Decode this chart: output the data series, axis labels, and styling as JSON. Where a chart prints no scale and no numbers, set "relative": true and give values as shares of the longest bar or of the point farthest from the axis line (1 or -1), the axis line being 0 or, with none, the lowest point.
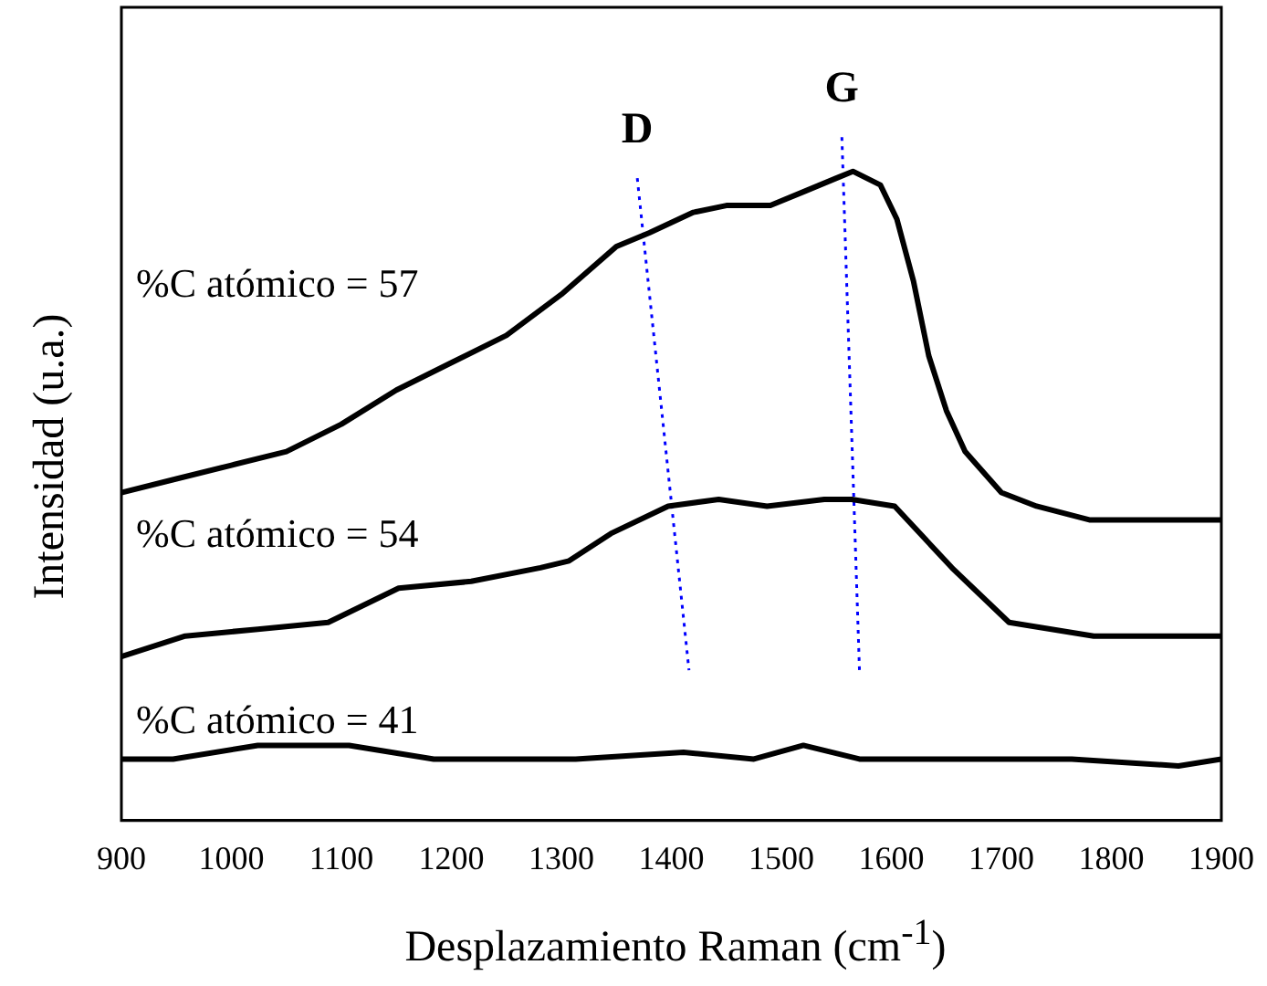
{
  "chart_data": {
    "type": "line",
    "relative": true,
    "xlabel": "Desplazamiento Raman (cm$^{-1}$)",
    "ylabel": "Intensidad (u.a.)",
    "xlim": [
      900,
      1900
    ],
    "xticks": [
      900,
      1000,
      1100,
      1200,
      1300,
      1400,
      1500,
      1600,
      1700,
      1800,
      1900
    ],
    "grid": false,
    "legend": false,
    "marker": "none",
    "line_style": "solid",
    "annotations": [
      "D",
      "G"
    ],
    "series": [
      {
        "name": "%C atómico = 57",
        "color": "#000000",
        "x": [
          900,
          950,
          1000,
          1050,
          1100,
          1150,
          1200,
          1250,
          1300,
          1350,
          1380,
          1420,
          1450,
          1490,
          1520,
          1550,
          1565,
          1590,
          1605,
          1620,
          1634,
          1650,
          1667,
          1700,
          1732,
          1780,
          1850,
          1900
        ],
        "values": [
          0.48,
          0.5,
          0.52,
          0.54,
          0.58,
          0.63,
          0.67,
          0.71,
          0.77,
          0.84,
          0.86,
          0.89,
          0.9,
          0.9,
          0.92,
          0.94,
          0.95,
          0.93,
          0.88,
          0.79,
          0.68,
          0.6,
          0.54,
          0.48,
          0.46,
          0.44,
          0.44,
          0.44
        ]
      },
      {
        "name": "%C atómico = 54",
        "color": "#000000",
        "x": [
          900,
          958,
          1024,
          1088,
          1152,
          1218,
          1281,
          1307,
          1345,
          1397,
          1443,
          1487,
          1539,
          1564,
          1603,
          1655,
          1707,
          1784,
          1861,
          1900
        ],
        "values": [
          0.24,
          0.27,
          0.28,
          0.29,
          0.34,
          0.35,
          0.37,
          0.38,
          0.42,
          0.46,
          0.47,
          0.46,
          0.47,
          0.47,
          0.46,
          0.37,
          0.29,
          0.27,
          0.27,
          0.27
        ]
      },
      {
        "name": "%C atómico = 41",
        "color": "#000000",
        "x": [
          900,
          947,
          1024,
          1107,
          1184,
          1313,
          1411,
          1475,
          1520,
          1571,
          1668,
          1764,
          1861,
          1900
        ],
        "values": [
          0.09,
          0.09,
          0.11,
          0.11,
          0.09,
          0.09,
          0.1,
          0.09,
          0.11,
          0.09,
          0.09,
          0.09,
          0.08,
          0.09
        ]
      },
      {
        "type": "line",
        "color": "#0000ff",
        "line_style": "dotted",
        "x": [
          1369,
          1416
        ],
        "values": [
          0.94,
          0.22
        ]
      },
      {
        "type": "line",
        "color": "#0000ff",
        "line_style": "dotted",
        "x": [
          1555,
          1571
        ],
        "values": [
          1,
          0.22
        ]
      }
    ]
  }
}
